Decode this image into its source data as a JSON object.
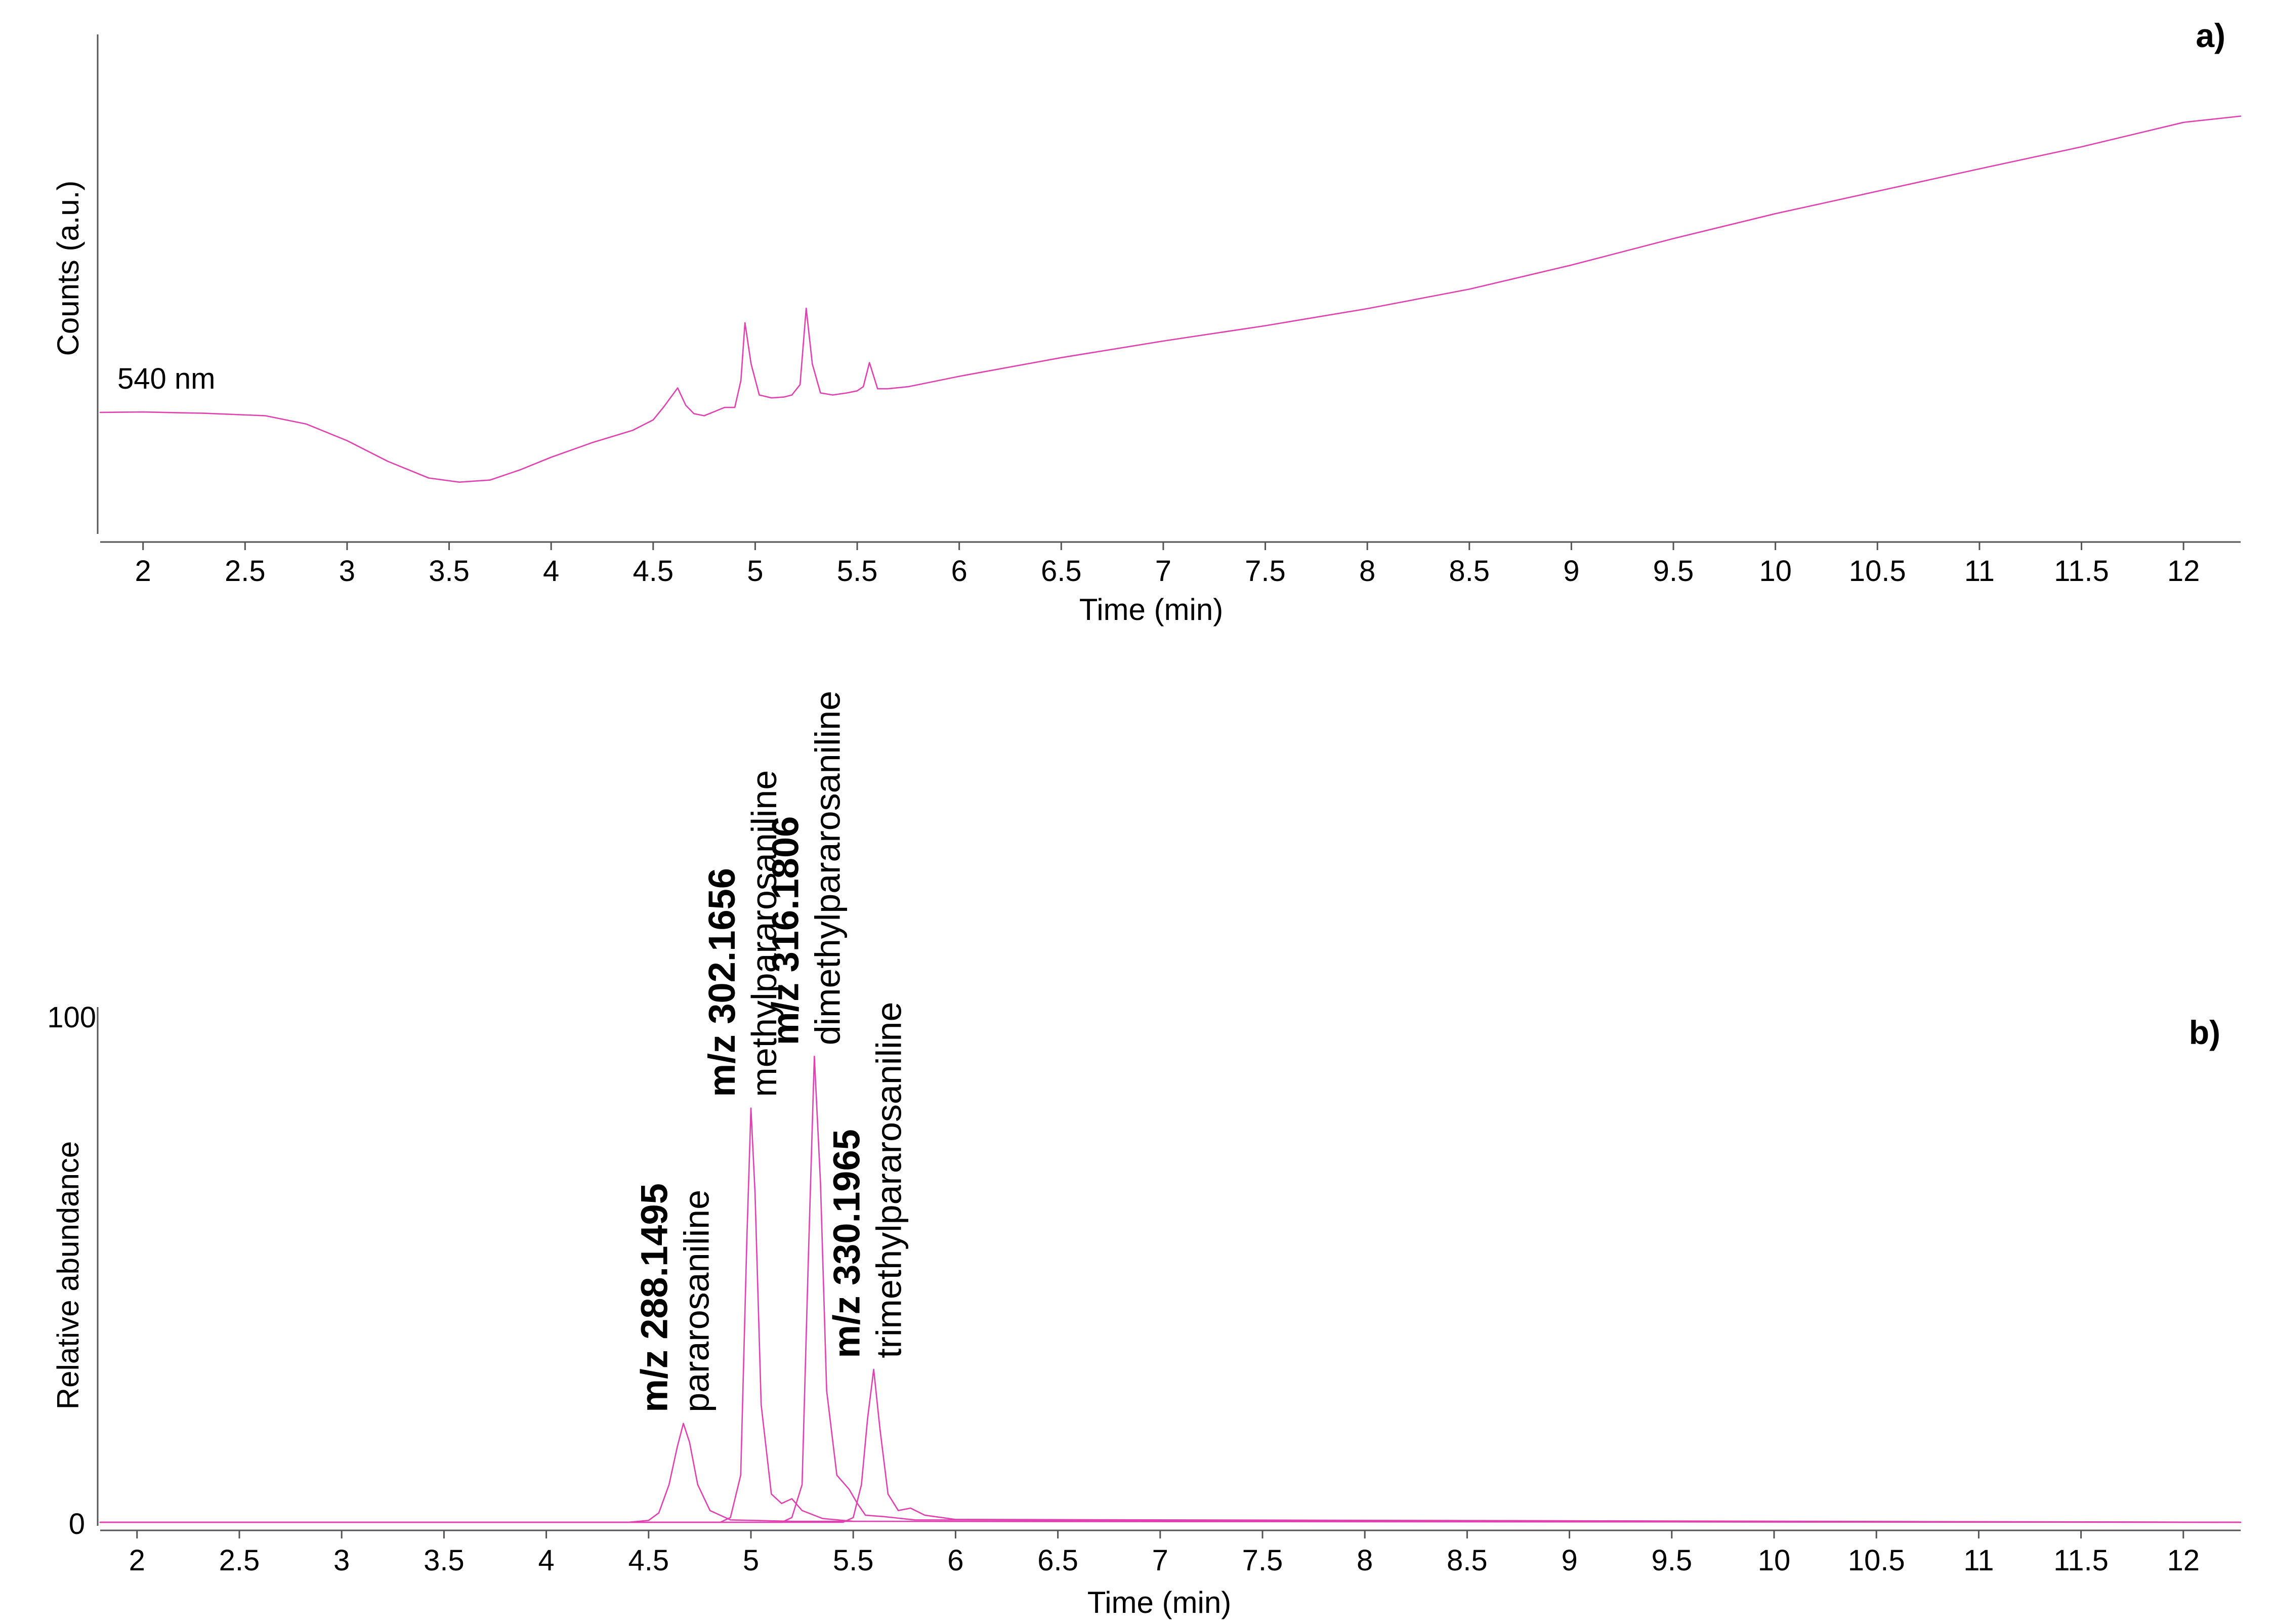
{
  "colors": {
    "trace": "#e040b0",
    "axis": "#555555",
    "text": "#000000"
  },
  "chart_data": [
    {
      "panel": "a)",
      "type": "line",
      "xlabel": "Time (min)",
      "ylabel": "Counts (a.u.)",
      "trace_label": "540 nm",
      "xlim": [
        1.79,
        12.28
      ],
      "x_ticks": [
        "2",
        "2.5",
        "3",
        "3.5",
        "4",
        "4.5",
        "5",
        "5.5",
        "6",
        "6.5",
        "7",
        "7.5",
        "8",
        "8.5",
        "9",
        "9.5",
        "10",
        "10.5",
        "11",
        "11.5",
        "12"
      ],
      "y_ticks": [],
      "ylim": [
        0,
        100
      ],
      "grid": false,
      "series": [
        {
          "x": [
            1.79,
            2.0,
            2.3,
            2.6,
            2.8,
            3.0,
            3.2,
            3.4,
            3.55,
            3.7,
            3.85,
            4.0,
            4.2,
            4.4,
            4.5,
            4.55,
            4.62,
            4.66,
            4.7,
            4.75,
            4.8,
            4.85,
            4.9,
            4.93,
            4.95,
            4.98,
            5.02,
            5.08,
            5.14,
            5.18,
            5.22,
            5.25,
            5.28,
            5.32,
            5.38,
            5.45,
            5.5,
            5.53,
            5.56,
            5.6,
            5.65,
            5.75,
            6.0,
            6.5,
            7.0,
            7.5,
            8.0,
            8.5,
            9.0,
            9.5,
            10.0,
            10.5,
            11.0,
            11.5,
            12.0,
            12.28
          ],
          "y": [
            18.3,
            18.4,
            18.1,
            17.5,
            15.5,
            11.5,
            6.5,
            2.5,
            1.5,
            2.0,
            4.5,
            7.5,
            11.0,
            14.0,
            16.5,
            19.5,
            24.2,
            20.0,
            18.0,
            17.5,
            18.5,
            19.5,
            19.5,
            26.0,
            39.9,
            30.0,
            22.5,
            21.8,
            22.0,
            22.5,
            25.0,
            43.4,
            30.0,
            23.0,
            22.5,
            23.0,
            23.5,
            24.5,
            30.3,
            24.0,
            24.0,
            24.5,
            27.0,
            31.5,
            35.5,
            39.2,
            43.3,
            48.0,
            53.8,
            60.2,
            66.2,
            71.6,
            77.0,
            82.3,
            88.2,
            89.7
          ]
        }
      ]
    },
    {
      "panel": "b)",
      "type": "line",
      "xlabel": "Time (min)",
      "ylabel": "Relative abundance",
      "xlim": [
        1.82,
        12.28
      ],
      "x_ticks": [
        "2",
        "2.5",
        "3",
        "3.5",
        "4",
        "4.5",
        "5",
        "5.5",
        "6",
        "6.5",
        "7",
        "7.5",
        "8",
        "8.5",
        "9",
        "9.5",
        "10",
        "10.5",
        "11",
        "11.5",
        "12"
      ],
      "y_ticks": [
        "0",
        "100"
      ],
      "ylim": [
        0,
        100
      ],
      "grid": false,
      "annotations": [
        {
          "mz": "m/z 288.1495",
          "name": "pararosaniline",
          "x": 4.67
        },
        {
          "mz": "m/z 302.1656",
          "name": "methylpararosaniline",
          "x": 5.0
        },
        {
          "mz": "m/z 316.1806",
          "name": "dimethylpararosaniline",
          "x": 5.31
        },
        {
          "mz": "m/z 330.1965",
          "name": "trimethylpararosaniline",
          "x": 5.61
        }
      ],
      "series": [
        {
          "x": [
            1.82,
            4.4,
            4.5,
            4.55,
            4.6,
            4.64,
            4.67,
            4.7,
            4.74,
            4.8,
            4.9,
            5.2,
            12.28
          ],
          "y": [
            0,
            0,
            0.4,
            2.0,
            8.0,
            16.0,
            21.0,
            17.0,
            8.0,
            2.5,
            0.5,
            0.2,
            0
          ]
        },
        {
          "x": [
            1.82,
            4.85,
            4.9,
            4.95,
            4.98,
            5.0,
            5.02,
            5.05,
            5.1,
            5.15,
            5.2,
            5.25,
            5.35,
            5.5,
            12.28
          ],
          "y": [
            0,
            0,
            1.0,
            10.0,
            60.0,
            88.0,
            70.0,
            25.0,
            6.0,
            4.0,
            5.0,
            2.5,
            0.8,
            0.2,
            0
          ]
        },
        {
          "x": [
            1.82,
            5.15,
            5.2,
            5.25,
            5.28,
            5.31,
            5.34,
            5.37,
            5.42,
            5.48,
            5.52,
            5.56,
            5.65,
            5.8,
            12.28
          ],
          "y": [
            0,
            0,
            1.0,
            8.0,
            55.0,
            99.0,
            72.0,
            28.0,
            10.0,
            7.0,
            4.0,
            1.5,
            1.2,
            0.5,
            0
          ]
        },
        {
          "x": [
            1.82,
            5.45,
            5.5,
            5.54,
            5.57,
            5.6,
            5.63,
            5.67,
            5.72,
            5.78,
            5.85,
            6.0,
            12.28
          ],
          "y": [
            0,
            0,
            1.0,
            8.0,
            22.0,
            32.5,
            20.0,
            6.0,
            2.5,
            3.0,
            1.5,
            0.6,
            0
          ]
        }
      ]
    }
  ]
}
